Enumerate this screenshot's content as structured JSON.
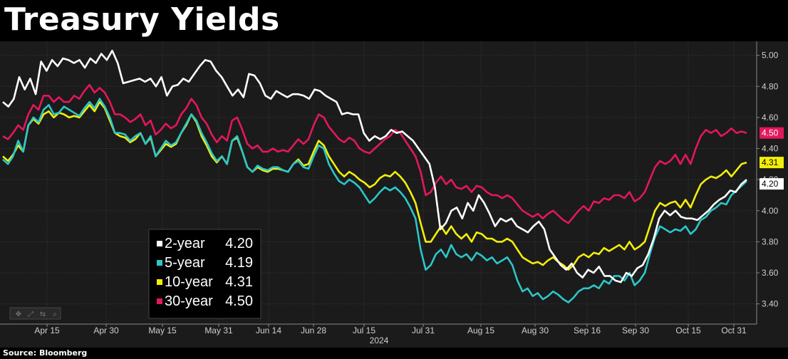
{
  "title": "Treasury Yields",
  "source": "Source: Bloomberg",
  "colors": {
    "2-year": "#ffffff",
    "5-year": "#2cc7c9",
    "10-year": "#f2ee0a",
    "30-year": "#e4175b",
    "grid": "#3a3a3a"
  },
  "toolbar_icons": [
    "move-icon",
    "expand-icon",
    "pan-icon",
    "zoom-icon"
  ],
  "chart_data": {
    "type": "line",
    "xlabel": "2024",
    "x_ticks": [
      "Apr 15",
      "Apr 30",
      "May 15",
      "May 31",
      "Jun 14",
      "Jun 28",
      "Jul 15",
      "Jul 31",
      "Aug 15",
      "Aug 30",
      "Sep 16",
      "Sep 30",
      "Oct 15",
      "Oct 31"
    ],
    "y_ticks": [
      "3.40",
      "3.60",
      "3.80",
      "4.00",
      "4.20",
      "4.40",
      "4.60",
      "4.80",
      "5.00"
    ],
    "ylim": [
      3.27,
      5.09
    ],
    "grid": true,
    "legend": {
      "placement": "bottom-left",
      "entries": [
        {
          "label": "2-year",
          "value": "4.20"
        },
        {
          "label": "5-year",
          "value": "4.19"
        },
        {
          "label": "10-year",
          "value": "4.31"
        },
        {
          "label": "30-year",
          "value": "4.50"
        }
      ]
    },
    "last_value_labels": [
      "4.50",
      "4.31",
      "4.20"
    ],
    "series": [
      {
        "name": "2-year",
        "values": [
          4.7,
          4.67,
          4.72,
          4.86,
          4.78,
          4.85,
          4.75,
          4.96,
          4.9,
          4.97,
          4.93,
          4.98,
          4.97,
          4.95,
          4.97,
          4.92,
          4.98,
          4.95,
          5.01,
          4.97,
          5.03,
          4.95,
          4.82,
          4.83,
          4.84,
          4.85,
          4.83,
          4.85,
          4.8,
          4.86,
          4.74,
          4.8,
          4.81,
          4.85,
          4.83,
          4.88,
          4.93,
          4.97,
          4.96,
          4.9,
          4.86,
          4.8,
          4.74,
          4.78,
          4.73,
          4.88,
          4.87,
          4.82,
          4.74,
          4.72,
          4.77,
          4.75,
          4.73,
          4.75,
          4.75,
          4.74,
          4.72,
          4.78,
          4.77,
          4.74,
          4.72,
          4.7,
          4.62,
          4.63,
          4.62,
          4.62,
          4.5,
          4.45,
          4.48,
          4.46,
          4.48,
          4.52,
          4.5,
          4.51,
          4.48,
          4.45,
          4.4,
          4.35,
          4.3,
          4.15,
          3.88,
          3.92,
          4.0,
          4.02,
          3.95,
          4.05,
          4.0,
          4.1,
          4.05,
          3.98,
          3.9,
          3.95,
          3.93,
          3.95,
          3.9,
          3.88,
          3.86,
          3.9,
          3.93,
          3.88,
          3.75,
          3.7,
          3.65,
          3.62,
          3.66,
          3.6,
          3.57,
          3.62,
          3.6,
          3.64,
          3.58,
          3.58,
          3.55,
          3.54,
          3.6,
          3.58,
          3.63,
          3.65,
          3.72,
          3.82,
          3.95,
          4.0,
          3.97,
          4.0,
          3.96,
          3.95,
          3.95,
          3.94,
          3.97,
          4.0,
          4.04,
          4.07,
          4.09,
          4.13,
          4.12,
          4.17,
          4.2
        ]
      },
      {
        "name": "5-year",
        "values": [
          4.33,
          4.3,
          4.35,
          4.45,
          4.38,
          4.55,
          4.6,
          4.57,
          4.65,
          4.68,
          4.62,
          4.63,
          4.67,
          4.65,
          4.63,
          4.61,
          4.66,
          4.7,
          4.66,
          4.72,
          4.67,
          4.6,
          4.5,
          4.5,
          4.49,
          4.45,
          4.48,
          4.5,
          4.43,
          4.48,
          4.35,
          4.4,
          4.45,
          4.42,
          4.44,
          4.5,
          4.56,
          4.62,
          4.58,
          4.5,
          4.44,
          4.37,
          4.32,
          4.35,
          4.3,
          4.45,
          4.48,
          4.38,
          4.28,
          4.25,
          4.29,
          4.27,
          4.26,
          4.28,
          4.28,
          4.26,
          4.25,
          4.3,
          4.32,
          4.28,
          4.27,
          4.35,
          4.42,
          4.4,
          4.3,
          4.24,
          4.19,
          4.17,
          4.2,
          4.18,
          4.15,
          4.1,
          4.05,
          4.08,
          4.12,
          4.15,
          4.13,
          4.15,
          4.12,
          4.08,
          4.02,
          3.95,
          3.75,
          3.62,
          3.65,
          3.72,
          3.75,
          3.7,
          3.78,
          3.72,
          3.7,
          3.72,
          3.68,
          3.73,
          3.71,
          3.68,
          3.7,
          3.66,
          3.68,
          3.7,
          3.65,
          3.55,
          3.48,
          3.5,
          3.45,
          3.47,
          3.43,
          3.45,
          3.48,
          3.46,
          3.43,
          3.41,
          3.44,
          3.48,
          3.5,
          3.5,
          3.52,
          3.5,
          3.55,
          3.53,
          3.58,
          3.58,
          3.55,
          3.6,
          3.52,
          3.55,
          3.6,
          3.72,
          3.83,
          3.9,
          3.88,
          3.86,
          3.88,
          3.87,
          3.9,
          3.85,
          3.88,
          3.94,
          3.96,
          4.0,
          4.02,
          4.05,
          4.04,
          4.1,
          4.13,
          4.16,
          4.19
        ]
      },
      {
        "name": "10-year",
        "values": [
          4.35,
          4.32,
          4.36,
          4.42,
          4.38,
          4.55,
          4.59,
          4.56,
          4.62,
          4.64,
          4.6,
          4.63,
          4.62,
          4.6,
          4.61,
          4.6,
          4.64,
          4.68,
          4.64,
          4.7,
          4.66,
          4.58,
          4.5,
          4.48,
          4.47,
          4.44,
          4.46,
          4.5,
          4.43,
          4.47,
          4.35,
          4.39,
          4.43,
          4.41,
          4.43,
          4.5,
          4.55,
          4.62,
          4.57,
          4.48,
          4.42,
          4.35,
          4.31,
          4.35,
          4.3,
          4.45,
          4.47,
          4.38,
          4.28,
          4.25,
          4.28,
          4.26,
          4.25,
          4.27,
          4.27,
          4.26,
          4.25,
          4.3,
          4.33,
          4.29,
          4.3,
          4.38,
          4.45,
          4.42,
          4.35,
          4.3,
          4.25,
          4.22,
          4.25,
          4.23,
          4.2,
          4.18,
          4.15,
          4.17,
          4.21,
          4.23,
          4.22,
          4.25,
          4.22,
          4.18,
          4.12,
          4.05,
          3.92,
          3.8,
          3.8,
          3.85,
          3.9,
          3.85,
          3.9,
          3.85,
          3.82,
          3.85,
          3.8,
          3.86,
          3.85,
          3.82,
          3.82,
          3.8,
          3.8,
          3.82,
          3.8,
          3.75,
          3.7,
          3.68,
          3.66,
          3.67,
          3.65,
          3.68,
          3.7,
          3.67,
          3.65,
          3.62,
          3.65,
          3.7,
          3.72,
          3.7,
          3.73,
          3.72,
          3.76,
          3.74,
          3.76,
          3.78,
          3.75,
          3.8,
          3.75,
          3.77,
          3.8,
          3.9,
          4.0,
          4.05,
          4.03,
          4.05,
          4.06,
          4.02,
          4.07,
          4.02,
          4.1,
          4.17,
          4.2,
          4.22,
          4.21,
          4.23,
          4.26,
          4.22,
          4.26,
          4.3,
          4.31
        ]
      },
      {
        "name": "30-year",
        "values": [
          4.48,
          4.46,
          4.5,
          4.55,
          4.52,
          4.62,
          4.68,
          4.65,
          4.74,
          4.74,
          4.7,
          4.73,
          4.7,
          4.7,
          4.74,
          4.72,
          4.77,
          4.81,
          4.76,
          4.79,
          4.76,
          4.7,
          4.62,
          4.62,
          4.6,
          4.57,
          4.59,
          4.62,
          4.55,
          4.58,
          4.49,
          4.52,
          4.56,
          4.53,
          4.55,
          4.62,
          4.66,
          4.72,
          4.68,
          4.6,
          4.56,
          4.49,
          4.44,
          4.48,
          4.45,
          4.58,
          4.6,
          4.52,
          4.43,
          4.4,
          4.42,
          4.38,
          4.38,
          4.4,
          4.38,
          4.39,
          4.38,
          4.42,
          4.46,
          4.43,
          4.46,
          4.55,
          4.62,
          4.6,
          4.54,
          4.5,
          4.46,
          4.44,
          4.47,
          4.45,
          4.4,
          4.38,
          4.37,
          4.4,
          4.43,
          4.46,
          4.48,
          4.52,
          4.5,
          4.45,
          4.4,
          4.35,
          4.25,
          4.1,
          4.12,
          4.18,
          4.22,
          4.17,
          4.2,
          4.15,
          4.14,
          4.16,
          4.12,
          4.16,
          4.15,
          4.12,
          4.1,
          4.1,
          4.08,
          4.1,
          4.08,
          4.04,
          4.0,
          3.98,
          3.96,
          3.98,
          3.95,
          3.98,
          4.0,
          3.97,
          3.94,
          3.92,
          3.96,
          4.0,
          4.03,
          4.0,
          4.06,
          4.05,
          4.08,
          4.07,
          4.1,
          4.1,
          4.08,
          4.12,
          4.06,
          4.08,
          4.12,
          4.2,
          4.28,
          4.32,
          4.3,
          4.32,
          4.36,
          4.3,
          4.36,
          4.3,
          4.4,
          4.48,
          4.52,
          4.5,
          4.52,
          4.48,
          4.5,
          4.53,
          4.5,
          4.51,
          4.5
        ]
      }
    ]
  }
}
